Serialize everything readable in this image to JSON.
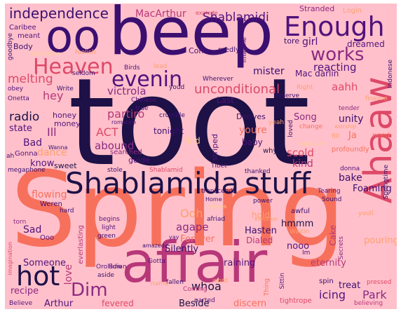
{
  "colors": {
    "background": "#ffc0cb",
    "navy": "#1d1147",
    "darkpurple": "#3b0f70",
    "purple": "#51127c",
    "magenta": "#8c2981",
    "rose": "#b73779",
    "red": "#de4968",
    "coral": "#f7705c",
    "orange": "#fe9f6d",
    "peach": "#fecf92",
    "cream": "#fcfdbf"
  },
  "words": [
    {
      "text": "toot",
      "color": "navy"
    },
    {
      "text": "Spring",
      "color": "coral"
    },
    {
      "text": "beep",
      "color": "darkpurple"
    },
    {
      "text": "affair",
      "color": "rose"
    },
    {
      "text": "Shablamida",
      "color": "navy"
    },
    {
      "text": "stuff",
      "color": "navy"
    },
    {
      "text": "oo",
      "color": "darkpurple"
    },
    {
      "text": "Ahaaw",
      "color": "red"
    },
    {
      "text": "Enough",
      "color": "purple"
    },
    {
      "text": "hot",
      "color": "navy"
    },
    {
      "text": "Heaven",
      "color": "red"
    },
    {
      "text": "evenin",
      "color": "purple"
    },
    {
      "text": "works",
      "color": "magenta"
    },
    {
      "text": "Dim",
      "color": "magenta"
    },
    {
      "text": "independence",
      "color": "darkpurple"
    },
    {
      "text": "MacArthur",
      "color": "rose"
    },
    {
      "text": "Shablamidi",
      "color": "purple"
    },
    {
      "text": "unconditional",
      "color": "red"
    },
    {
      "text": "victrola",
      "color": "magenta"
    },
    {
      "text": "melting",
      "color": "red"
    },
    {
      "text": "Ill",
      "color": "magenta"
    },
    {
      "text": "hey",
      "color": "rose"
    },
    {
      "text": "girl",
      "color": "purple"
    },
    {
      "text": "reacting",
      "color": "purple"
    },
    {
      "text": "mister",
      "color": "darkpurple"
    },
    {
      "text": "Mac darlin",
      "color": "purple"
    },
    {
      "text": "aahh",
      "color": "red"
    },
    {
      "text": "radio",
      "color": "navy"
    },
    {
      "text": "state",
      "color": "purple"
    },
    {
      "text": "partiro",
      "color": "rose"
    },
    {
      "text": "ACT",
      "color": "red"
    },
    {
      "text": "abound",
      "color": "magenta"
    },
    {
      "text": "Bad",
      "color": "purple"
    },
    {
      "text": "know",
      "color": "purple"
    },
    {
      "text": "dance",
      "color": "orange"
    },
    {
      "text": "scold",
      "color": "red"
    },
    {
      "text": "kind",
      "color": "rose"
    },
    {
      "text": "Song",
      "color": "magenta"
    },
    {
      "text": "unity",
      "color": "darkpurple"
    },
    {
      "text": "Ja",
      "color": "coral"
    },
    {
      "text": "tonight",
      "color": "darkpurple"
    },
    {
      "text": "youre",
      "color": "coral"
    },
    {
      "text": "baby",
      "color": "purple"
    },
    {
      "text": "find",
      "color": "peach"
    },
    {
      "text": "bake",
      "color": "darkpurple"
    },
    {
      "text": "flowing",
      "color": "coral"
    },
    {
      "text": "Foaming",
      "color": "darkpurple"
    },
    {
      "text": "Ooh",
      "color": "orange"
    },
    {
      "text": "agape",
      "color": "magenta"
    },
    {
      "text": "Sad",
      "color": "purple"
    },
    {
      "text": "Forever",
      "color": "coral"
    },
    {
      "text": "Silently",
      "color": "darkpurple"
    },
    {
      "text": "Hasten",
      "color": "darkpurple"
    },
    {
      "text": "Dialed",
      "color": "rose"
    },
    {
      "text": "nooo",
      "color": "purple"
    },
    {
      "text": "hmmm",
      "color": "navy"
    },
    {
      "text": "Cake",
      "color": "rose"
    },
    {
      "text": "pouring",
      "color": "orange"
    },
    {
      "text": "raining",
      "color": "purple"
    },
    {
      "text": "eternity",
      "color": "rose"
    },
    {
      "text": "whoa",
      "color": "navy"
    },
    {
      "text": "treat",
      "color": "darkpurple"
    },
    {
      "text": "icing",
      "color": "purple"
    },
    {
      "text": "Park",
      "color": "magenta"
    },
    {
      "text": "love",
      "color": "rose"
    },
    {
      "text": "Someone",
      "color": "purple"
    },
    {
      "text": "recipe",
      "color": "magenta"
    },
    {
      "text": "Arthur",
      "color": "purple"
    },
    {
      "text": "Beside",
      "color": "navy"
    },
    {
      "text": "discern",
      "color": "coral"
    },
    {
      "text": "fevered",
      "color": "red"
    },
    {
      "text": "hold",
      "color": "orange"
    },
    {
      "text": "honey",
      "color": "purple"
    },
    {
      "text": "money",
      "color": "purple"
    },
    {
      "text": "Gonna",
      "color": "purple"
    },
    {
      "text": "sweet",
      "color": "navy"
    },
    {
      "text": "guide",
      "color": "purple"
    },
    {
      "text": "searched",
      "color": "magenta"
    },
    {
      "text": "Shablamid",
      "color": "red"
    },
    {
      "text": "stole",
      "color": "darkpurple"
    },
    {
      "text": "striped",
      "color": "purple"
    },
    {
      "text": "thanked",
      "color": "darkpurple"
    },
    {
      "text": "Tibet",
      "color": "purple"
    },
    {
      "text": "Derives",
      "color": "darkpurple"
    },
    {
      "text": "yeah",
      "color": "orange"
    },
    {
      "text": "loved",
      "color": "darkpurple"
    },
    {
      "text": "change",
      "color": "coral"
    },
    {
      "text": "survive",
      "color": "peach"
    },
    {
      "text": "profoundly",
      "color": "coral"
    },
    {
      "text": "need",
      "color": "coral"
    },
    {
      "text": "fill",
      "color": "orange"
    },
    {
      "text": "whyy",
      "color": "navy"
    },
    {
      "text": "Wherever",
      "color": "darkpurple"
    },
    {
      "text": "Last",
      "color": "purple"
    },
    {
      "text": "deserve",
      "color": "darkpurple"
    },
    {
      "text": "Chinese",
      "color": "purple"
    },
    {
      "text": "romance",
      "color": "purple"
    },
    {
      "text": "true",
      "color": "purple"
    },
    {
      "text": "Birds",
      "color": "purple"
    },
    {
      "text": "lead",
      "color": "orange"
    },
    {
      "text": "Con",
      "color": "purple"
    },
    {
      "text": "medly",
      "color": "darkpurple"
    },
    {
      "text": "Imagine",
      "color": "purple"
    },
    {
      "text": "tore",
      "color": "darkpurple"
    },
    {
      "text": "dreamed",
      "color": "purple"
    },
    {
      "text": "Stranded",
      "color": "magenta"
    },
    {
      "text": "Login",
      "color": "orange"
    },
    {
      "text": "explode",
      "color": "red"
    },
    {
      "text": "Caribee",
      "color": "purple"
    },
    {
      "text": "meant",
      "color": "purple"
    },
    {
      "text": "goodbye",
      "color": "darkpurple"
    },
    {
      "text": "Body",
      "color": "darkpurple"
    },
    {
      "text": "meditative",
      "color": "peach"
    },
    {
      "text": "foolish",
      "color": "orange"
    },
    {
      "text": "Onetta",
      "color": "purple"
    },
    {
      "text": "obey",
      "color": "purple"
    },
    {
      "text": "Write",
      "color": "darkpurple"
    },
    {
      "text": "seldom",
      "color": "darkpurple"
    },
    {
      "text": "youd",
      "color": "darkpurple"
    },
    {
      "text": "Right",
      "color": "orange"
    },
    {
      "text": "Indonese",
      "color": "darkpurple"
    },
    {
      "text": "tender",
      "color": "magenta"
    },
    {
      "text": "finesse",
      "color": "orange"
    },
    {
      "text": "crumble",
      "color": "darkpurple"
    },
    {
      "text": "worship",
      "color": "orange"
    },
    {
      "text": "Springtime",
      "color": "darkpurple"
    },
    {
      "text": "donna",
      "color": "purple"
    },
    {
      "text": "megaphone",
      "color": "darkpurple"
    },
    {
      "text": "ah",
      "color": "darkpurple"
    },
    {
      "text": "Wanna",
      "color": "darkpurple"
    },
    {
      "text": "Weren",
      "color": "darkpurple"
    },
    {
      "text": "hard",
      "color": "darkpurple"
    },
    {
      "text": "torn",
      "color": "magenta"
    },
    {
      "text": "Ooo",
      "color": "purple"
    },
    {
      "text": "begins",
      "color": "purple"
    },
    {
      "text": "light",
      "color": "purple"
    },
    {
      "text": "green",
      "color": "darkpurple"
    },
    {
      "text": "everlasting",
      "color": "rose"
    },
    {
      "text": "imagination",
      "color": "red"
    },
    {
      "text": "Oroladian",
      "color": "purple"
    },
    {
      "text": "aside",
      "color": "darkpurple"
    },
    {
      "text": "flow",
      "color": "purple"
    },
    {
      "text": "Gotta",
      "color": "purple"
    },
    {
      "text": "Coming",
      "color": "rose"
    },
    {
      "text": "fallen",
      "color": "darkpurple"
    },
    {
      "text": "name",
      "color": "orange"
    },
    {
      "text": "word",
      "color": "orange"
    },
    {
      "text": "parted",
      "color": "purple"
    },
    {
      "text": "tightrope",
      "color": "red"
    },
    {
      "text": "Sittin",
      "color": "purple"
    },
    {
      "text": "spin",
      "color": "darkpurple"
    },
    {
      "text": "pressed",
      "color": "red"
    },
    {
      "text": "believing",
      "color": "rose"
    },
    {
      "text": "Believe",
      "color": "purple"
    },
    {
      "text": "transcends",
      "color": "darkpurple"
    },
    {
      "text": "Home",
      "color": "darkpurple"
    },
    {
      "text": "afriad",
      "color": "darkpurple"
    },
    {
      "text": "pages",
      "color": "peach"
    },
    {
      "text": "power",
      "color": "darkpurple"
    },
    {
      "text": "awful",
      "color": "darkpurple"
    },
    {
      "text": "Sound",
      "color": "darkpurple"
    },
    {
      "text": "Tearing",
      "color": "purple"
    },
    {
      "text": "youll",
      "color": "orange"
    },
    {
      "text": "Waitin",
      "color": "orange"
    },
    {
      "text": "Secrets",
      "color": "magenta"
    },
    {
      "text": "amazed",
      "color": "darkpurple"
    },
    {
      "text": "yay",
      "color": "purple"
    },
    {
      "text": "Im",
      "color": "purple"
    },
    {
      "text": "emotion",
      "color": "orange"
    },
    {
      "text": "Thing",
      "color": "coral"
    }
  ]
}
